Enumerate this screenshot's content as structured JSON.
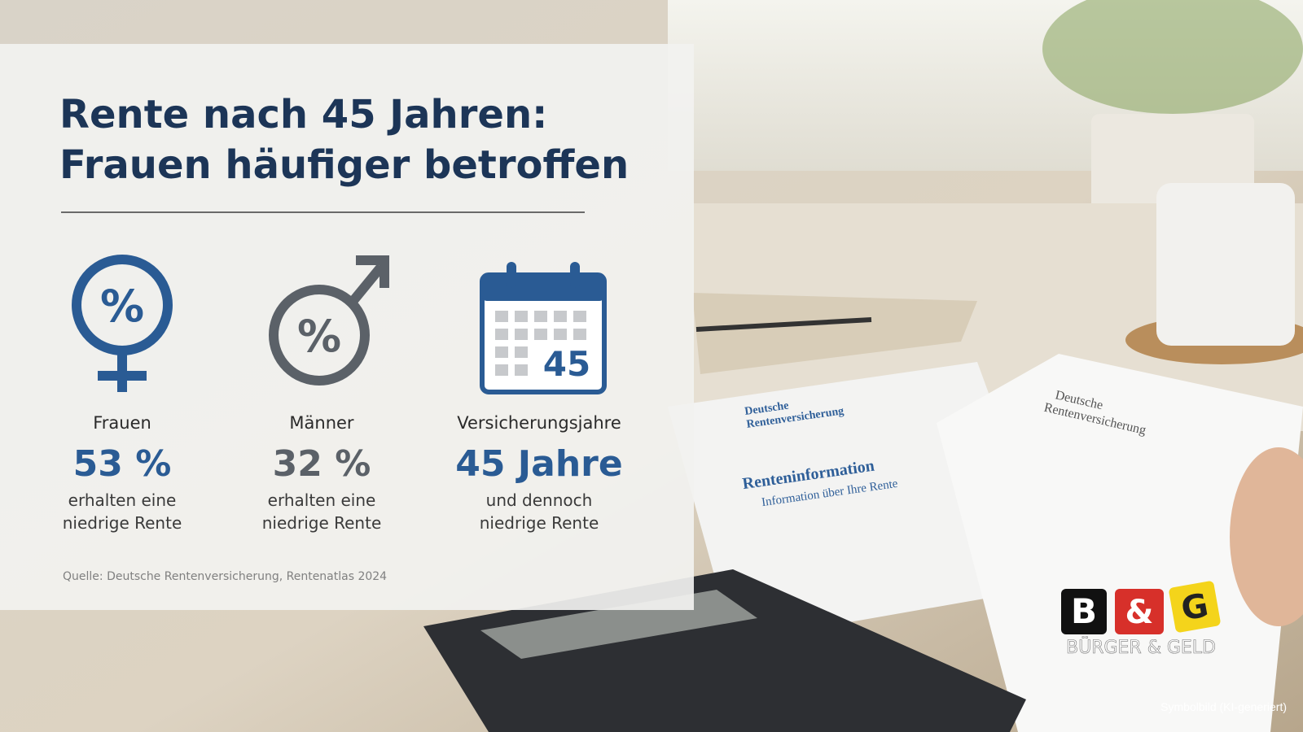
{
  "header": {
    "title": [
      "Rente nach 45 Jahren:",
      "Frauen häufiger betroffen"
    ]
  },
  "stats": [
    {
      "icon_text": "%",
      "label": "Frauen",
      "value": "53 %",
      "description": [
        "erhalten eine",
        "niedrige Rente"
      ]
    },
    {
      "icon_text": "%",
      "label": "Männer",
      "value": "32 %",
      "description": [
        "erhalten eine",
        "niedrige Rente"
      ]
    },
    {
      "icon_text": "45",
      "label": "Versicherungsjahre",
      "value": "45 Jahre",
      "description": [
        "und dennoch",
        "niedrige Rente"
      ]
    }
  ],
  "source": "Quelle: Deutsche Rentenversicherung, Rentenatlas 2024",
  "background_documents": [
    {
      "lines": [
        "Deutsche",
        "Rentenversicherung",
        "Renteninformation",
        "Information über Ihre Rente"
      ]
    },
    {
      "lines": [
        "Deutsche",
        "Rentenversicherung"
      ]
    }
  ],
  "logo": {
    "letters": [
      "B",
      "&",
      "G"
    ],
    "brand": "BÜRGER & GELD"
  },
  "caption": "Symbolbild (KI-generiert)"
}
